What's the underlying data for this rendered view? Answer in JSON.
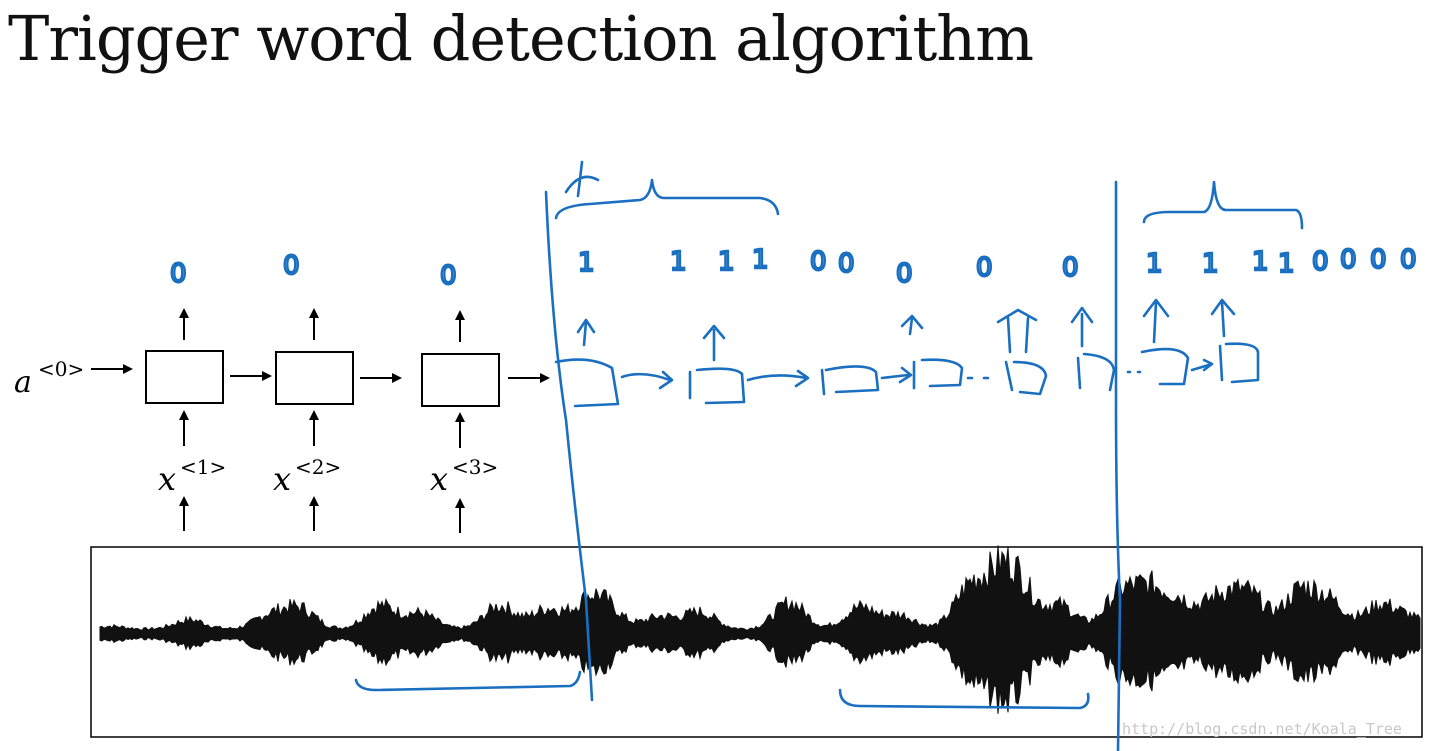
{
  "title": "Trigger word detection algorithm",
  "initial_activation": {
    "base": "a",
    "sup": "<0>"
  },
  "inputs": [
    {
      "base": "x",
      "sup": "<1>"
    },
    {
      "base": "x",
      "sup": "<2>"
    },
    {
      "base": "x",
      "sup": "<3>"
    }
  ],
  "outputs": [
    "0",
    "0",
    "0"
  ],
  "handwritten_outputs_segment1": [
    "1",
    "1",
    "1",
    "1",
    "0",
    "0",
    "0",
    "0",
    "0"
  ],
  "handwritten_outputs_segment2": [
    "1",
    "1",
    "1",
    "1",
    "0",
    "0",
    "0",
    "0"
  ],
  "watermark": "http://blog.csdn.net/Koala_Tree"
}
